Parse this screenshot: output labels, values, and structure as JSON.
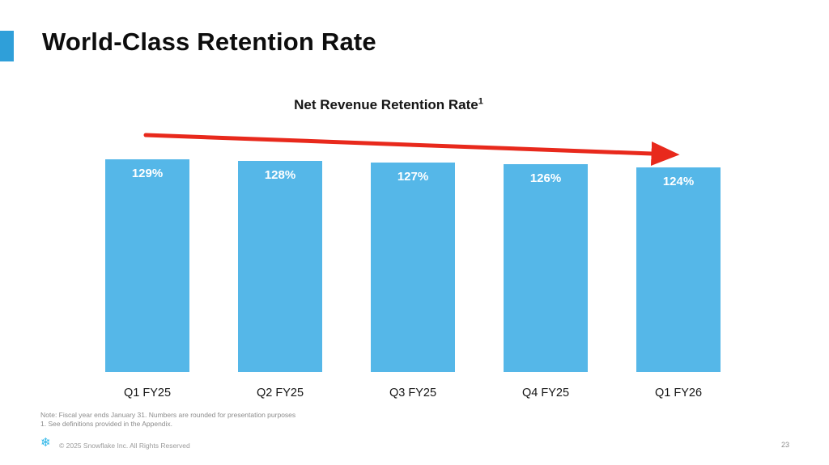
{
  "slide": {
    "title": "World-Class Retention Rate",
    "notes": [
      "Note: Fiscal year ends January 31. Numbers are rounded for presentation purposes",
      "1.  See definitions provided in the Appendix."
    ],
    "footer": {
      "logo": "snowflake",
      "copyright": "© 2025 Snowflake Inc. All Rights Reserved",
      "page_number": "23"
    }
  },
  "chart_data": {
    "type": "bar",
    "title": "Net Revenue Retention Rate",
    "title_superscript": "1",
    "categories": [
      "Q1 FY25",
      "Q2 FY25",
      "Q3 FY25",
      "Q4 FY25",
      "Q1 FY26"
    ],
    "values": [
      129,
      128,
      127,
      126,
      124
    ],
    "value_labels": [
      "129%",
      "128%",
      "127%",
      "126%",
      "124%"
    ],
    "ylabel": "",
    "xlabel": "",
    "ylim": [
      0,
      140
    ],
    "grid": false,
    "legend": "none",
    "bar_color": "#55b7e8",
    "arrow_color": "#e8291c",
    "annotation": "red downward trend arrow across bar tops"
  },
  "colors": {
    "accent_bar": "#2f9fd9",
    "title_text": "#0d0d0d",
    "bar_fill": "#55b7e8",
    "bar_label_text": "#ffffff",
    "arrow": "#e8291c",
    "note_text": "#8c8c8c",
    "logo_blue": "#29b5e8"
  }
}
